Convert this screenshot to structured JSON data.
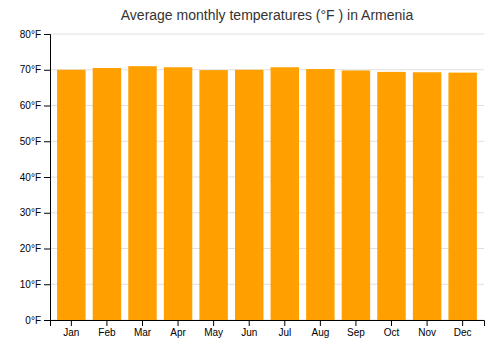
{
  "chart_data": {
    "type": "bar",
    "title": "Average monthly temperatures (°F ) in Armenia",
    "categories": [
      "Jan",
      "Feb",
      "Mar",
      "Apr",
      "May",
      "Jun",
      "Jul",
      "Aug",
      "Sep",
      "Oct",
      "Nov",
      "Dec"
    ],
    "values": [
      70.0,
      70.5,
      71.0,
      70.7,
      69.9,
      70.0,
      70.7,
      70.2,
      69.8,
      69.4,
      69.3,
      69.2
    ],
    "color": "#FFA000",
    "ylim": [
      0,
      80
    ],
    "yticks": [
      {
        "value": 0,
        "label": "0°F"
      },
      {
        "value": 10,
        "label": "10°F"
      },
      {
        "value": 20,
        "label": "20°F"
      },
      {
        "value": 30,
        "label": "30°F"
      },
      {
        "value": 40,
        "label": "40°F"
      },
      {
        "value": 50,
        "label": "50°F"
      },
      {
        "value": 60,
        "label": "60°F"
      },
      {
        "value": 70,
        "label": "70°F"
      },
      {
        "value": 80,
        "label": "80°F"
      }
    ],
    "grid": true
  }
}
